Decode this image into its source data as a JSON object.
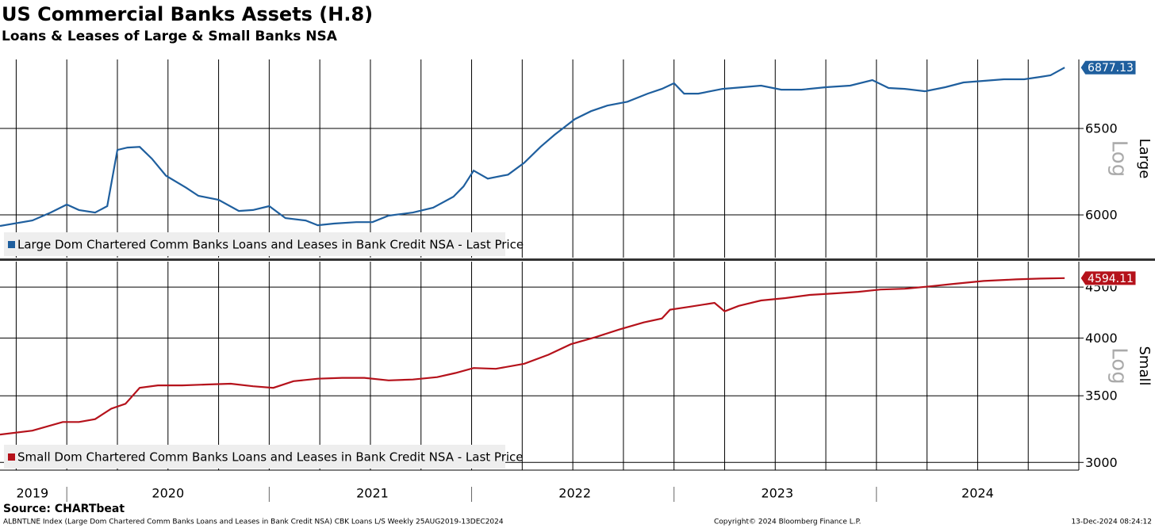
{
  "header": {
    "title": "US Commercial Banks Assets (H.8)",
    "subtitle": "Loans & Leases of Large & Small Banks NSA"
  },
  "footer": {
    "source": "Source: CHARTbeat",
    "description": "ALBNTLNE Index (Large Dom Chartered Comm Banks Loans and Leases in Bank Credit NSA) CBK Loans L/S  Weekly 25AUG2019-13DEC2024",
    "copyright": "Copyright© 2024 Bloomberg Finance L.P.",
    "timestamp": "13-Dec-2024 08:24:12"
  },
  "chart_data": [
    {
      "type": "line",
      "ylabel": "Large",
      "scale_label": "Log",
      "log": true,
      "grid": true,
      "xlim": [
        2019.67,
        2025.0
      ],
      "ylim": [
        5767,
        6929
      ],
      "yticks": [
        6000,
        6500
      ],
      "xgrid": [
        2019.75,
        2020.0,
        2020.25,
        2020.5,
        2020.75,
        2021.0,
        2021.25,
        2021.5,
        2021.75,
        2022.0,
        2022.25,
        2022.5,
        2022.75,
        2023.0,
        2023.25,
        2023.5,
        2023.75,
        2024.0,
        2024.25,
        2024.5,
        2024.75
      ],
      "x": [
        2019.67,
        2019.83,
        2019.92,
        2020.0,
        2020.06,
        2020.14,
        2020.2,
        2020.25,
        2020.3,
        2020.36,
        2020.42,
        2020.49,
        2020.59,
        2020.65,
        2020.75,
        2020.85,
        2020.92,
        2021.0,
        2021.08,
        2021.18,
        2021.24,
        2021.32,
        2021.43,
        2021.51,
        2021.59,
        2021.71,
        2021.81,
        2021.91,
        2021.96,
        2022.01,
        2022.08,
        2022.18,
        2022.26,
        2022.34,
        2022.41,
        2022.51,
        2022.59,
        2022.67,
        2022.77,
        2022.87,
        2022.94,
        2023.0,
        2023.05,
        2023.12,
        2023.24,
        2023.34,
        2023.43,
        2023.53,
        2023.63,
        2023.75,
        2023.87,
        2023.98,
        2024.06,
        2024.14,
        2024.24,
        2024.34,
        2024.43,
        2024.53,
        2024.63,
        2024.73,
        2024.81,
        2024.86,
        2024.93
      ],
      "series": [
        {
          "name": "Large Dom Chartered Comm Banks Loans and Leases in Bank Credit NSA - Last Price",
          "color": "#1f5f9e",
          "values": [
            5939,
            5969,
            6013,
            6058,
            6027,
            6013,
            6049,
            6372,
            6386,
            6390,
            6321,
            6222,
            6153,
            6107,
            6084,
            6022,
            6027,
            6049,
            5982,
            5969,
            5943,
            5952,
            5960,
            5960,
            5996,
            6013,
            6040,
            6102,
            6160,
            6251,
            6205,
            6228,
            6297,
            6390,
            6462,
            6557,
            6605,
            6639,
            6663,
            6713,
            6743,
            6778,
            6713,
            6713,
            6743,
            6753,
            6763,
            6738,
            6738,
            6753,
            6763,
            6798,
            6748,
            6743,
            6728,
            6753,
            6783,
            6793,
            6803,
            6803,
            6818,
            6828,
            6877.13
          ]
        }
      ]
    },
    {
      "type": "line",
      "ylabel": "Small",
      "scale_label": "Log",
      "log": true,
      "grid": true,
      "xlim": [
        2019.67,
        2025.0
      ],
      "ylim": [
        2947,
        4773
      ],
      "yticks": [
        3000,
        3500,
        4000,
        4500
      ],
      "xgrid": [
        2019.75,
        2020.0,
        2020.25,
        2020.5,
        2020.75,
        2021.0,
        2021.25,
        2021.5,
        2021.75,
        2022.0,
        2022.25,
        2022.5,
        2022.75,
        2023.0,
        2023.25,
        2023.5,
        2023.75,
        2024.0,
        2024.25,
        2024.5,
        2024.75
      ],
      "xticks": [
        {
          "value": 2019.83,
          "label": "2019"
        },
        {
          "value": 2020.5,
          "label": "2020"
        },
        {
          "value": 2021.51,
          "label": "2021"
        },
        {
          "value": 2022.51,
          "label": "2022"
        },
        {
          "value": 2023.51,
          "label": "2023"
        },
        {
          "value": 2024.5,
          "label": "2024"
        }
      ],
      "xbounds": [
        2020.0,
        2021.0,
        2022.0,
        2023.0,
        2024.0
      ],
      "x": [
        2019.67,
        2019.83,
        2019.98,
        2020.06,
        2020.14,
        2020.22,
        2020.29,
        2020.36,
        2020.45,
        2020.57,
        2020.69,
        2020.81,
        2020.92,
        2021.02,
        2021.12,
        2021.24,
        2021.36,
        2021.47,
        2021.59,
        2021.71,
        2021.83,
        2021.92,
        2022.01,
        2022.12,
        2022.26,
        2022.38,
        2022.49,
        2022.61,
        2022.73,
        2022.85,
        2022.94,
        2022.98,
        2023.08,
        2023.2,
        2023.25,
        2023.32,
        2023.43,
        2023.55,
        2023.67,
        2023.79,
        2023.91,
        2024.02,
        2024.14,
        2024.26,
        2024.37,
        2024.53,
        2024.69,
        2024.81,
        2024.93
      ],
      "series": [
        {
          "name": "Small Dom Chartered Comm Banks Loans and Leases in Bank Credit NSA - Last Price",
          "color": "#b5121b",
          "values": [
            3200,
            3229,
            3294,
            3294,
            3316,
            3397,
            3436,
            3565,
            3585,
            3585,
            3592,
            3599,
            3578,
            3565,
            3620,
            3641,
            3648,
            3648,
            3627,
            3634,
            3654,
            3689,
            3732,
            3725,
            3769,
            3849,
            3943,
            4007,
            4080,
            4147,
            4185,
            4270,
            4301,
            4339,
            4255,
            4309,
            4363,
            4387,
            4419,
            4435,
            4451,
            4475,
            4483,
            4507,
            4531,
            4564,
            4581,
            4589,
            4594.11
          ]
        }
      ]
    }
  ]
}
